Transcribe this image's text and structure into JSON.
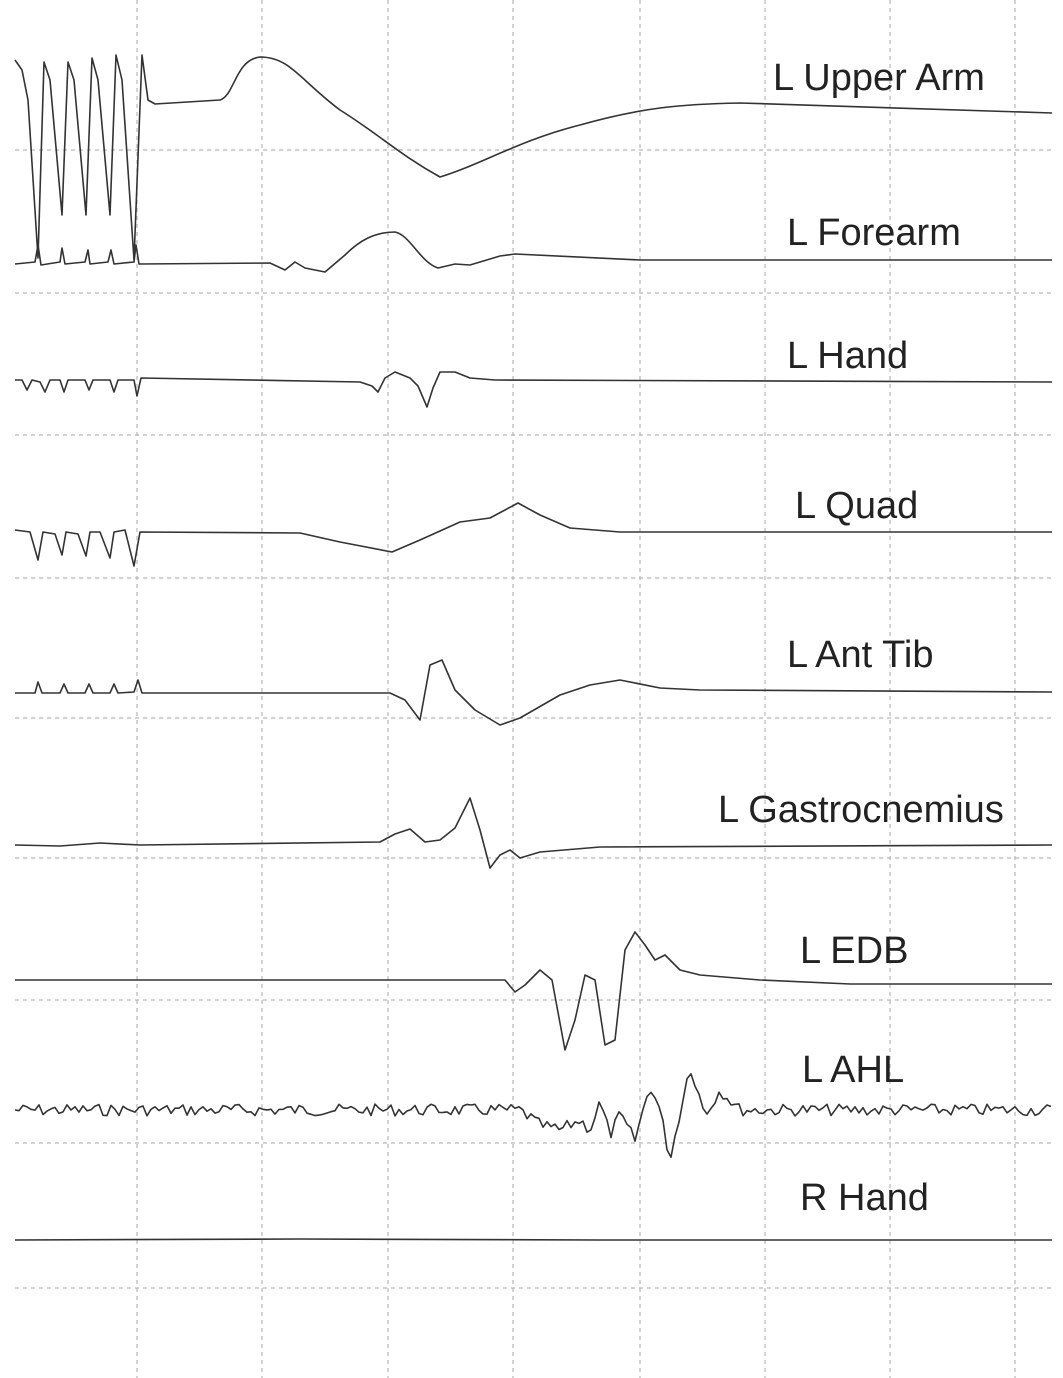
{
  "channels": [
    {
      "label": "L Upper Arm"
    },
    {
      "label": "L Forearm"
    },
    {
      "label": "L Hand"
    },
    {
      "label": "L Quad"
    },
    {
      "label": "L Ant Tib"
    },
    {
      "label": "L Gastrocnemius"
    },
    {
      "label": "L EDB"
    },
    {
      "label": "L AHL"
    },
    {
      "label": "R Hand"
    }
  ]
}
